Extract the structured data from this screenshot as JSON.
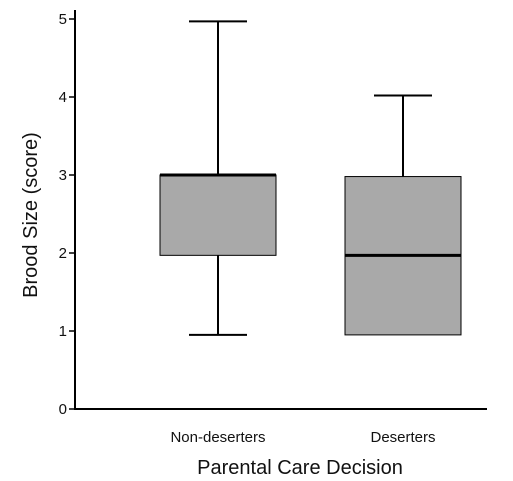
{
  "chart_data": {
    "type": "box",
    "xlabel": "Parental Care Decision",
    "ylabel": "Brood Size (score)",
    "ylim": [
      0,
      5
    ],
    "yticks": [
      0,
      1,
      2,
      3,
      4,
      5
    ],
    "grid": false,
    "colors": {
      "box_fill": "#a9a9a9",
      "stroke": "#000000"
    },
    "categories": [
      "Non-deserters",
      "Deserters"
    ],
    "boxes": [
      {
        "category": "Non-deserters",
        "min": 0.95,
        "q1": 1.97,
        "median": 3.0,
        "q3": 3.0,
        "max": 4.97
      },
      {
        "category": "Deserters",
        "min": 0.95,
        "q1": 0.95,
        "median": 1.97,
        "q3": 2.98,
        "max": 4.02
      }
    ]
  }
}
